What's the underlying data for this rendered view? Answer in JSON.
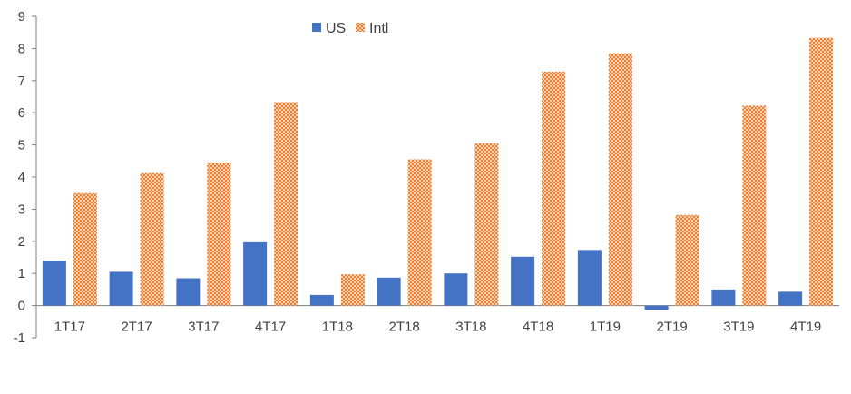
{
  "chart_data": {
    "type": "bar",
    "categories": [
      "1T17",
      "2T17",
      "3T17",
      "4T17",
      "1T18",
      "2T18",
      "3T18",
      "4T18",
      "1T19",
      "2T19",
      "3T19",
      "4T19"
    ],
    "series": [
      {
        "name": "US",
        "values": [
          1.4,
          1.05,
          0.85,
          1.97,
          0.33,
          0.87,
          1.0,
          1.52,
          1.73,
          -0.13,
          0.5,
          0.43
        ],
        "color": "#4472c4",
        "pattern": "solid"
      },
      {
        "name": "Intl",
        "values": [
          3.5,
          4.12,
          4.45,
          6.33,
          0.97,
          4.55,
          5.05,
          7.28,
          7.85,
          2.82,
          6.22,
          8.33
        ],
        "color": "#ed7d31",
        "pattern": "dotted-grid"
      }
    ],
    "ylim": [
      -1,
      9
    ],
    "yticks": [
      -1,
      0,
      1,
      2,
      3,
      4,
      5,
      6,
      7,
      8,
      9
    ],
    "title": "",
    "xlabel": "",
    "ylabel": "",
    "grid": false,
    "legend_position": "top-center"
  }
}
